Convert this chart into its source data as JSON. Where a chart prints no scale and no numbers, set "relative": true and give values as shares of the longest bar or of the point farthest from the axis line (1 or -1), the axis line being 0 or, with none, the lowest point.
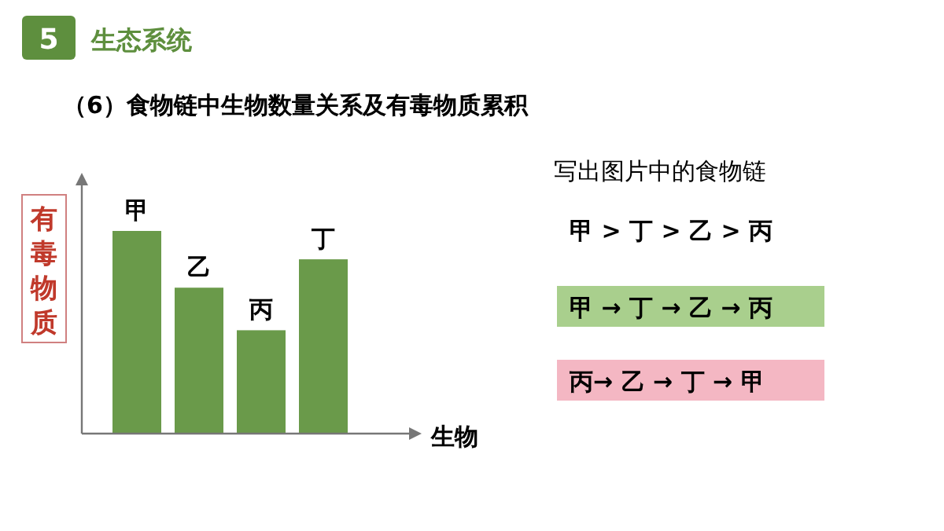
{
  "chart_data": {
    "type": "bar",
    "relative": true,
    "title": "（6）食物链中生物数量关系及有毒物质累积",
    "categories": [
      "甲",
      "乙",
      "丙",
      "丁"
    ],
    "values": [
      1,
      0.72,
      0.51,
      0.86
    ],
    "color": "#6a9a4a",
    "xlabel": "生物",
    "ylabel": "有毒物质",
    "annotations": [
      "5",
      "生态系统",
      "写出图片中的食物链",
      "甲 > 丁 > 乙 > 丙",
      "甲 → 丁 → 乙 → 丙",
      "丙→ 乙 → 丁 → 甲"
    ]
  }
}
